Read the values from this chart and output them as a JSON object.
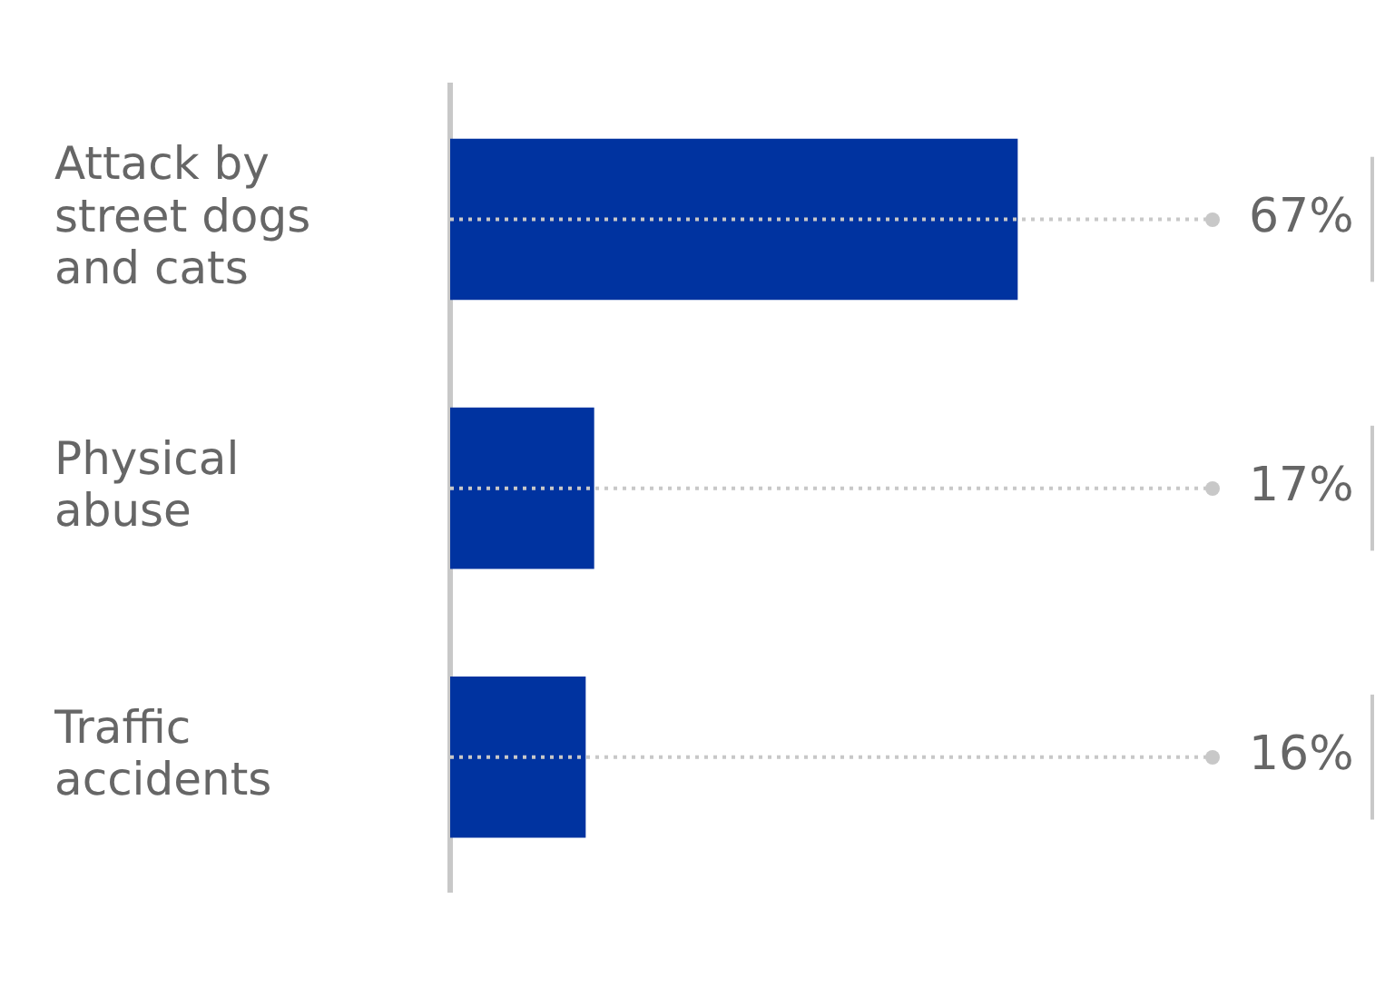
{
  "chart_data": {
    "type": "bar",
    "orientation": "horizontal",
    "categories": [
      "Attack by street dogs and cats",
      "Physical abuse",
      "Traffic accidents"
    ],
    "values": [
      67,
      17,
      16
    ],
    "color": "#0033a0",
    "data_labels": true,
    "value_labels": [
      "67%",
      "17%",
      "16%"
    ],
    "legend": false
  }
}
